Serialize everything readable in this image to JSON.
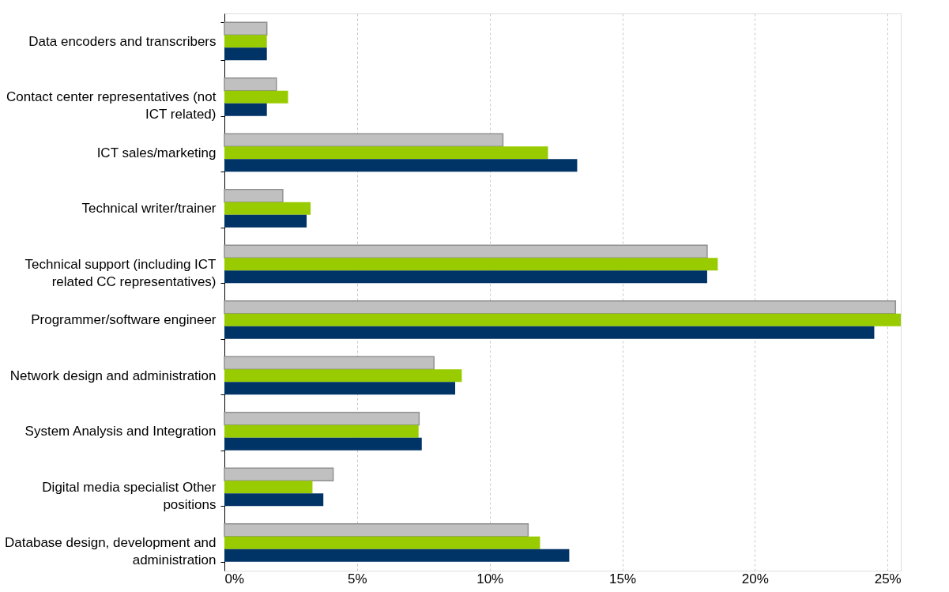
{
  "chart_data": {
    "type": "bar",
    "orientation": "horizontal",
    "categories": [
      "Data encoders and transcribers",
      "Contact center representatives (not ICT related)",
      "ICT sales/marketing",
      "Technical writer/trainer",
      "Technical support (including ICT related CC representatives)",
      "Programmer/software engineer",
      "Network design and administration",
      "System Analysis and Integration",
      "Digital media specialist Other positions",
      "Database design, development and administration"
    ],
    "series": [
      {
        "color": "#c0c0c0",
        "values": [
          1.6,
          1.96,
          10.5,
          2.2,
          18.2,
          25.3,
          7.9,
          7.34,
          4.1,
          11.45
        ]
      },
      {
        "color": "#99cc00",
        "values": [
          1.6,
          2.4,
          12.2,
          3.25,
          18.6,
          25.5,
          8.95,
          7.32,
          3.32,
          11.9
        ]
      },
      {
        "color": "#003366",
        "values": [
          1.6,
          1.6,
          13.3,
          3.1,
          18.2,
          24.5,
          8.7,
          7.44,
          3.73,
          13.0
        ]
      }
    ],
    "xlim": [
      0,
      25.5
    ],
    "xticks": [
      {
        "value": 0,
        "label": "0%"
      },
      {
        "value": 5,
        "label": "5%"
      },
      {
        "value": 10,
        "label": "10%"
      },
      {
        "value": 15,
        "label": "15%"
      },
      {
        "value": 20,
        "label": "20%"
      },
      {
        "value": 25,
        "label": "25%"
      }
    ],
    "grid": "x",
    "legend": false
  }
}
